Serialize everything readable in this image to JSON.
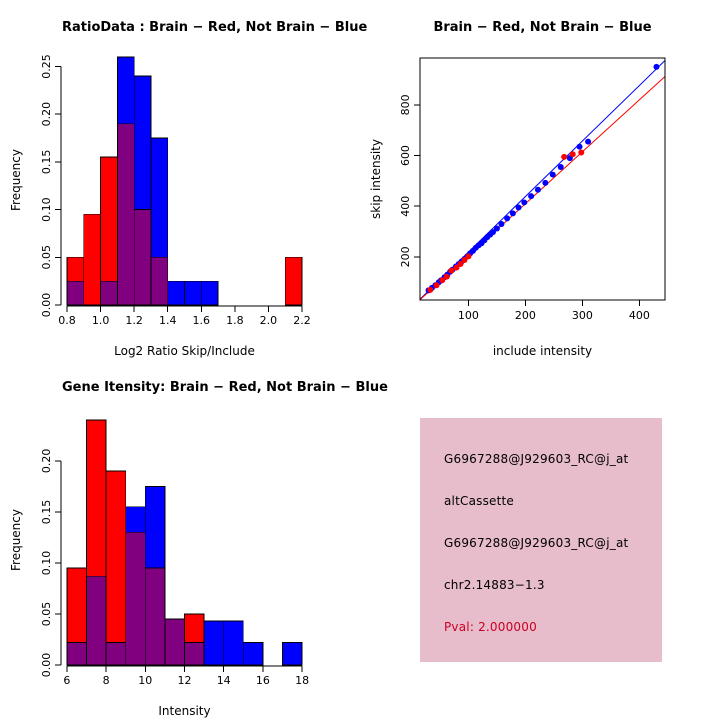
{
  "page": {
    "background": "#FFFFFF"
  },
  "chart_data": [
    {
      "type": "histogram",
      "title": "RatioData : Brain − Red, Not Brain − Blue",
      "xlabel": "Log2 Ratio Skip/Include",
      "ylabel": "Frequency",
      "bin_start": 0.8,
      "bin_width": 0.1,
      "xlim": [
        0.77,
        2.23
      ],
      "ylim": [
        0,
        0.262
      ],
      "xticks": [
        0.8,
        1.0,
        1.2,
        1.4,
        1.6,
        1.8,
        2.0,
        2.2
      ],
      "xtick_labels": [
        "0.8",
        "1.0",
        "1.2",
        "1.4",
        "1.6",
        "1.8",
        "2.0",
        "2.2"
      ],
      "yticks": [
        0,
        0.05,
        0.1,
        0.15,
        0.2,
        0.25
      ],
      "ytick_labels": [
        "0.00",
        "0.05",
        "0.10",
        "0.15",
        "0.20",
        "0.25"
      ],
      "legend_note": "Brain = red, Not Brain = blue, overlap = purple",
      "series": [
        {
          "name": "Brain",
          "color": "#FF0000",
          "values": [
            0.05,
            0.095,
            0.155,
            0.19,
            0.1,
            0.05,
            0,
            0,
            0,
            0,
            0,
            0,
            0,
            0.05
          ]
        },
        {
          "name": "Not Brain",
          "color": "#0000FF",
          "values": [
            0.025,
            0,
            0.025,
            0.26,
            0.24,
            0.175,
            0.025,
            0.025,
            0.025,
            0,
            0,
            0,
            0,
            0
          ]
        }
      ],
      "overlap_color": "#800080"
    },
    {
      "type": "scatter",
      "title": "Brain − Red, Not Brain − Blue",
      "xlabel": "include intensity",
      "ylabel": "skip intensity",
      "xlim": [
        15,
        445
      ],
      "ylim": [
        30,
        985
      ],
      "xticks": [
        100,
        200,
        300,
        400
      ],
      "xtick_labels": [
        "100",
        "200",
        "300",
        "400"
      ],
      "yticks": [
        200,
        400,
        600,
        800
      ],
      "ytick_labels": [
        "200",
        "400",
        "600",
        "800"
      ],
      "series": [
        {
          "name": "Not Brain",
          "color": "#0000FF",
          "points": [
            [
              30,
              68
            ],
            [
              36,
              78
            ],
            [
              42,
              88
            ],
            [
              48,
              100
            ],
            [
              52,
              108
            ],
            [
              58,
              120
            ],
            [
              63,
              130
            ],
            [
              68,
              142
            ],
            [
              72,
              150
            ],
            [
              78,
              162
            ],
            [
              83,
              172
            ],
            [
              88,
              182
            ],
            [
              93,
              192
            ],
            [
              98,
              202
            ],
            [
              103,
              214
            ],
            [
              108,
              224
            ],
            [
              113,
              236
            ],
            [
              118,
              246
            ],
            [
              123,
              254
            ],
            [
              128,
              266
            ],
            [
              133,
              278
            ],
            [
              138,
              288
            ],
            [
              143,
              298
            ],
            [
              150,
              312
            ],
            [
              158,
              330
            ],
            [
              168,
              352
            ],
            [
              178,
              372
            ],
            [
              188,
              395
            ],
            [
              198,
              415
            ],
            [
              210,
              440
            ],
            [
              222,
              465
            ],
            [
              235,
              492
            ],
            [
              248,
              525
            ],
            [
              262,
              555
            ],
            [
              278,
              590
            ],
            [
              295,
              635
            ],
            [
              310,
              655
            ],
            [
              430,
              950
            ]
          ]
        },
        {
          "name": "Brain",
          "color": "#FF0000",
          "points": [
            [
              33,
              70
            ],
            [
              44,
              88
            ],
            [
              54,
              108
            ],
            [
              62,
              122
            ],
            [
              70,
              146
            ],
            [
              79,
              158
            ],
            [
              86,
              172
            ],
            [
              93,
              188
            ],
            [
              100,
              202
            ],
            [
              268,
              595
            ],
            [
              283,
              605
            ],
            [
              298,
              612
            ]
          ]
        }
      ],
      "lines": [
        {
          "color": "#0000FF",
          "from": [
            15,
            33
          ],
          "to": [
            445,
            975
          ]
        },
        {
          "color": "#FF0000",
          "from": [
            15,
            31
          ],
          "to": [
            445,
            912
          ]
        }
      ]
    },
    {
      "type": "histogram",
      "title": "Gene Itensity: Brain − Red, Not Brain − Blue",
      "xlabel": "Intensity",
      "ylabel": "Frequency",
      "bin_start": 6,
      "bin_width": 1,
      "xlim": [
        5.75,
        18.25
      ],
      "ylim": [
        0,
        0.245
      ],
      "xticks": [
        6,
        8,
        10,
        12,
        14,
        16,
        18
      ],
      "xtick_labels": [
        "6",
        "8",
        "10",
        "12",
        "14",
        "16",
        "18"
      ],
      "yticks": [
        0,
        0.05,
        0.1,
        0.15,
        0.2
      ],
      "ytick_labels": [
        "0.00",
        "0.05",
        "0.10",
        "0.15",
        "0.20"
      ],
      "legend_note": "Brain = red, Not Brain = blue, overlap = purple",
      "series": [
        {
          "name": "Brain",
          "color": "#FF0000",
          "values": [
            0.095,
            0.24,
            0.19,
            0.13,
            0.095,
            0.045,
            0.05,
            0,
            0,
            0,
            0,
            0
          ]
        },
        {
          "name": "Not Brain",
          "color": "#0000FF",
          "values": [
            0.022,
            0.087,
            0.022,
            0.155,
            0.175,
            0.045,
            0.022,
            0.043,
            0.043,
            0.022,
            0,
            0.022
          ]
        }
      ],
      "overlap_color": "#800080"
    },
    {
      "type": "info",
      "bg_color": "#E7BCCB",
      "text_color": "#000000",
      "pval_color": "#CC0022",
      "lines": [
        "G6967288@J929603_RC@j_at",
        "altCassette",
        "G6967288@J929603_RC@j_at",
        "chr2.14883−1.3",
        "Pval: 2.000000"
      ]
    }
  ]
}
